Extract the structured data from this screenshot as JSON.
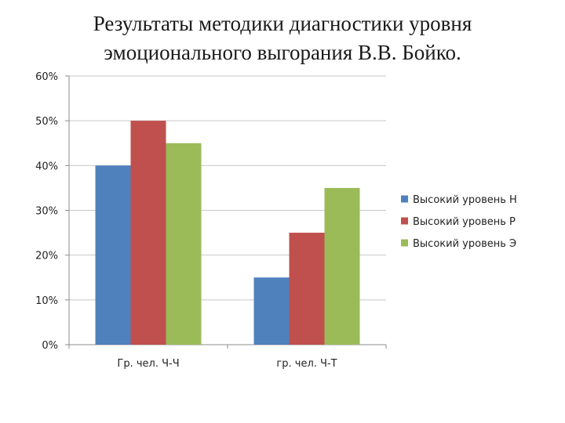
{
  "title_lines": [
    "Результаты методики диагностики уровня",
    "эмоционального выгорания В.В. Бойко."
  ],
  "chart_data": {
    "type": "bar",
    "categories": [
      "Гр. чел. Ч-Ч",
      "гр. чел. Ч-Т"
    ],
    "series": [
      {
        "name": "Высокий уровень Н",
        "values": [
          40,
          15
        ],
        "color": "#4f81bd"
      },
      {
        "name": "Высокий уровень Р",
        "values": [
          50,
          25
        ],
        "color": "#c0504d"
      },
      {
        "name": "Высокий уровень Э",
        "values": [
          45,
          35
        ],
        "color": "#9bbb59"
      }
    ],
    "ylim": [
      0,
      60
    ],
    "yticks": [
      "0%",
      "10%",
      "20%",
      "30%",
      "40%",
      "50%",
      "60%"
    ],
    "grid": true,
    "legend": "right"
  }
}
